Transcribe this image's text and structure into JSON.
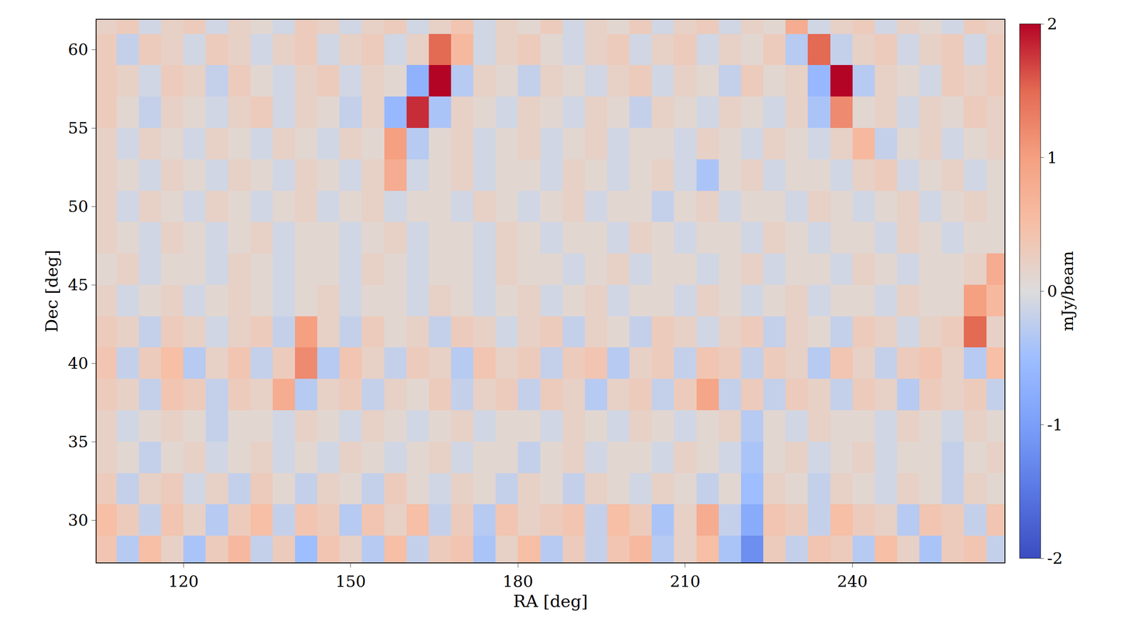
{
  "chart_data": {
    "type": "heatmap",
    "x_label": "RA [deg]",
    "y_label": "Dec [deg]",
    "x": [
      106,
      110,
      114,
      118,
      122,
      126,
      130,
      134,
      138,
      142,
      146,
      150,
      154,
      158,
      162,
      166,
      170,
      174,
      178,
      182,
      186,
      190,
      194,
      198,
      202,
      206,
      210,
      214,
      218,
      222,
      226,
      230,
      234,
      238,
      242,
      246,
      250,
      254,
      258,
      262,
      266
    ],
    "y": [
      28,
      30,
      32,
      34,
      36,
      38,
      40,
      42,
      44,
      46,
      48,
      50,
      52,
      54,
      56,
      58,
      60,
      62
    ],
    "cells": [
      [
        0.4,
        -0.3,
        0.5,
        0.2,
        -0.4,
        0.3,
        0.6,
        -0.2,
        0.3,
        -0.5,
        0.4,
        0.2,
        -0.3,
        0.5,
        -0.2,
        0.3,
        0.4,
        -0.4,
        0.2,
        0.5,
        -0.3,
        0.3,
        -0.2,
        0.4,
        0.6,
        -0.3,
        0.2,
        0.5,
        -0.4,
        -1.2,
        0.3,
        -0.2,
        0.4,
        0.3,
        -0.3,
        0.5,
        0.2,
        -0.4,
        0.3,
        0.4,
        -0.2
      ],
      [
        0.5,
        0.3,
        -0.2,
        0.4,
        0.2,
        -0.3,
        0.3,
        0.5,
        -0.2,
        0.4,
        0.3,
        -0.3,
        0.4,
        0.2,
        0.5,
        -0.2,
        0.3,
        -0.3,
        0.4,
        0.2,
        0.3,
        0.4,
        -0.2,
        0.5,
        0.3,
        -0.4,
        0.2,
        0.8,
        -0.2,
        -0.8,
        0.4,
        0.3,
        -0.2,
        0.5,
        0.3,
        0.2,
        -0.3,
        0.4,
        0.3,
        -0.2,
        0.4
      ],
      [
        0.3,
        -0.2,
        0.2,
        0.3,
        -0.1,
        0.2,
        -0.2,
        0.3,
        0.1,
        -0.2,
        0.2,
        0.1,
        -0.2,
        0.3,
        0.1,
        -0.1,
        0.2,
        0.1,
        -0.2,
        0.2,
        0.1,
        -0.2,
        0.2,
        0.1,
        -0.1,
        0.2,
        0.1,
        -0.2,
        0.1,
        -0.5,
        0.2,
        0.1,
        -0.2,
        0.2,
        0.1,
        -0.1,
        0.2,
        0.1,
        -0.2,
        0.2,
        0.1
      ],
      [
        0.2,
        0.1,
        -0.2,
        0.1,
        0.2,
        -0.1,
        0.1,
        0.2,
        -0.1,
        0.1,
        -0.1,
        0.2,
        0.1,
        -0.1,
        0.1,
        0.2,
        -0.1,
        0.1,
        0.1,
        -0.2,
        0.1,
        0.2,
        -0.1,
        0.1,
        0.1,
        -0.1,
        0.2,
        0.1,
        -0.1,
        -0.4,
        0.1,
        0.2,
        -0.1,
        0.1,
        0.2,
        -0.1,
        0.1,
        0.1,
        -0.2,
        0.1,
        0.2
      ],
      [
        0.2,
        -0.1,
        0.1,
        0.2,
        0.1,
        -0.2,
        0.1,
        0.1,
        -0.1,
        0.2,
        0.1,
        -0.1,
        0.2,
        0.1,
        -0.1,
        0.1,
        0.2,
        -0.1,
        0.1,
        0.1,
        -0.1,
        0.2,
        0.1,
        -0.1,
        0.2,
        0.1,
        -0.1,
        0.1,
        0.2,
        -0.3,
        0.1,
        -0.1,
        0.2,
        0.1,
        0.1,
        -0.1,
        0.2,
        0.1,
        -0.1,
        0.2,
        0.1
      ],
      [
        0.3,
        0.2,
        -0.2,
        0.4,
        0.3,
        -0.2,
        0.3,
        0.2,
        0.8,
        -0.3,
        0.2,
        0.3,
        -0.2,
        0.2,
        0.1,
        0.3,
        -0.2,
        0.2,
        0.3,
        -0.2,
        0.3,
        0.2,
        -0.3,
        0.2,
        0.3,
        -0.2,
        0.3,
        0.9,
        -0.2,
        0.3,
        -0.2,
        0.3,
        0.2,
        -0.2,
        0.3,
        0.2,
        -0.3,
        0.3,
        0.2,
        0.3,
        -0.2
      ],
      [
        0.4,
        -0.2,
        0.3,
        0.5,
        -0.3,
        0.2,
        0.4,
        -0.2,
        0.3,
        1.2,
        -0.3,
        0.4,
        0.2,
        -0.2,
        0.3,
        0.2,
        -0.3,
        0.4,
        0.2,
        0.3,
        -0.2,
        0.3,
        0.4,
        -0.3,
        0.2,
        0.3,
        -0.2,
        0.4,
        0.3,
        -0.2,
        0.3,
        0.2,
        -0.3,
        0.4,
        0.2,
        -0.2,
        0.3,
        0.4,
        0.2,
        -0.3,
        0.5
      ],
      [
        0.3,
        0.2,
        -0.2,
        0.3,
        0.2,
        -0.1,
        0.2,
        0.3,
        -0.2,
        1.0,
        0.2,
        -0.2,
        0.3,
        0.1,
        0.2,
        -0.2,
        0.3,
        0.2,
        -0.1,
        0.2,
        0.3,
        -0.2,
        0.2,
        0.1,
        -0.2,
        0.3,
        0.2,
        -0.1,
        0.2,
        0.3,
        -0.2,
        0.2,
        0.1,
        -0.2,
        0.3,
        0.2,
        -0.1,
        0.2,
        0.3,
        1.5,
        0.2
      ],
      [
        0.2,
        -0.1,
        0.1,
        0.2,
        -0.1,
        0.1,
        0.2,
        0.1,
        -0.1,
        0.1,
        0.2,
        -0.1,
        0.1,
        0.1,
        -0.1,
        0.2,
        0.1,
        -0.1,
        0.1,
        0.2,
        -0.1,
        0.1,
        0.2,
        -0.1,
        0.1,
        0.1,
        -0.1,
        0.2,
        0.1,
        -0.1,
        0.1,
        0.2,
        -0.1,
        0.1,
        0.1,
        -0.1,
        0.2,
        0.1,
        0.1,
        1.0,
        0.6
      ],
      [
        0.1,
        0.2,
        -0.1,
        0.1,
        0.1,
        -0.1,
        0.2,
        0.1,
        -0.1,
        0.1,
        0.1,
        -0.1,
        0.2,
        0.1,
        -0.1,
        0.1,
        0.1,
        -0.1,
        0.2,
        0.1,
        0.1,
        -0.1,
        0.1,
        0.2,
        -0.1,
        0.1,
        0.1,
        -0.1,
        0.1,
        0.2,
        -0.1,
        0.1,
        0.1,
        -0.1,
        0.2,
        0.1,
        -0.1,
        0.1,
        0.1,
        0.2,
        0.8
      ],
      [
        0.2,
        0.1,
        -0.1,
        0.2,
        0.1,
        -0.1,
        0.1,
        0.2,
        -0.1,
        0.1,
        0.1,
        -0.1,
        0.1,
        0.2,
        -0.1,
        0.1,
        0.1,
        -0.1,
        0.2,
        0.1,
        -0.1,
        0.1,
        0.1,
        -0.1,
        0.2,
        0.1,
        -0.1,
        0.1,
        0.1,
        -0.1,
        0.2,
        0.1,
        -0.1,
        0.1,
        0.1,
        -0.1,
        0.2,
        0.1,
        -0.1,
        0.1,
        0.1
      ],
      [
        0.2,
        -0.1,
        0.2,
        0.1,
        -0.1,
        0.2,
        0.1,
        -0.1,
        0.1,
        0.2,
        -0.1,
        0.1,
        0.2,
        -0.1,
        0.1,
        0.1,
        -0.1,
        0.2,
        0.1,
        -0.1,
        0.1,
        0.2,
        -0.1,
        0.1,
        0.1,
        -0.2,
        0.1,
        0.2,
        -0.1,
        0.1,
        0.1,
        -0.1,
        0.2,
        0.1,
        -0.1,
        0.1,
        0.2,
        -0.1,
        0.1,
        0.2,
        0.1
      ],
      [
        0.2,
        0.1,
        -0.1,
        0.2,
        0.1,
        -0.1,
        0.2,
        0.1,
        -0.1,
        0.2,
        0.1,
        -0.1,
        0.2,
        0.8,
        -0.1,
        0.1,
        0.2,
        -0.1,
        0.1,
        0.1,
        -0.1,
        0.2,
        0.1,
        -0.1,
        0.1,
        0.2,
        -0.1,
        -0.4,
        0.1,
        0.2,
        -0.1,
        0.1,
        0.1,
        -0.1,
        0.2,
        0.3,
        -0.1,
        0.1,
        0.2,
        -0.1,
        0.1
      ],
      [
        0.2,
        -0.1,
        0.2,
        0.1,
        -0.1,
        0.2,
        0.1,
        -0.1,
        0.2,
        0.1,
        -0.1,
        0.2,
        0.1,
        1.0,
        -0.3,
        0.1,
        0.2,
        -0.1,
        0.1,
        0.2,
        -0.1,
        0.1,
        0.2,
        -0.1,
        0.1,
        0.1,
        -0.1,
        0.2,
        0.1,
        -0.1,
        0.2,
        0.1,
        -0.1,
        0.2,
        0.6,
        -0.2,
        0.1,
        0.2,
        -0.1,
        0.1,
        0.2
      ],
      [
        0.3,
        0.1,
        -0.2,
        0.2,
        0.1,
        -0.1,
        0.2,
        0.3,
        -0.1,
        0.2,
        0.1,
        -0.2,
        0.2,
        -0.6,
        1.8,
        -0.4,
        0.2,
        0.1,
        -0.1,
        0.2,
        0.1,
        -0.1,
        0.2,
        0.1,
        -0.2,
        0.2,
        0.1,
        -0.1,
        0.2,
        0.1,
        -0.1,
        0.2,
        -0.4,
        1.2,
        0.1,
        0.2,
        -0.1,
        0.2,
        0.1,
        0.3,
        0.2
      ],
      [
        0.3,
        0.2,
        -0.1,
        0.3,
        0.2,
        -0.2,
        0.3,
        0.1,
        -0.1,
        0.2,
        0.3,
        -0.1,
        0.2,
        0.1,
        -0.7,
        2.0,
        -0.3,
        0.2,
        0.1,
        -0.2,
        0.2,
        0.1,
        -0.1,
        0.2,
        0.3,
        -0.1,
        0.2,
        0.1,
        -0.2,
        0.3,
        0.1,
        0.2,
        -0.6,
        2.0,
        -0.3,
        0.2,
        0.1,
        -0.1,
        0.3,
        0.2,
        0.3
      ],
      [
        0.3,
        -0.2,
        0.3,
        0.2,
        -0.1,
        0.3,
        0.2,
        -0.1,
        0.2,
        0.3,
        -0.1,
        0.2,
        0.3,
        -0.1,
        0.2,
        1.5,
        0.6,
        -0.1,
        0.2,
        0.3,
        0.1,
        -0.1,
        0.2,
        0.3,
        -0.1,
        0.2,
        0.3,
        -0.1,
        0.2,
        0.1,
        0.3,
        -0.3,
        1.5,
        -0.2,
        0.2,
        0.3,
        -0.1,
        0.2,
        0.3,
        -0.1,
        0.3
      ],
      [
        0.2,
        0.3,
        -0.1,
        0.2,
        0.3,
        -0.1,
        0.2,
        0.1,
        -0.1,
        0.3,
        0.2,
        -0.1,
        0.2,
        0.3,
        -0.1,
        0.2,
        0.4,
        -0.1,
        0.2,
        0.1,
        0.3,
        -0.1,
        0.2,
        0.1,
        0.3,
        -0.1,
        0.2,
        0.3,
        -0.1,
        0.2,
        0.1,
        0.8,
        -0.1,
        0.2,
        0.3,
        -0.1,
        0.2,
        0.1,
        -0.1,
        0.3,
        0.2
      ]
    ],
    "xlim": [
      104.4,
      267.3
    ],
    "ylim": [
      27.3,
      61.9
    ],
    "xticks": [
      120,
      150,
      180,
      210,
      240
    ],
    "yticks": [
      30,
      35,
      40,
      45,
      50,
      55,
      60
    ],
    "colorbar": {
      "label": "mJy/beam",
      "range": [
        -2,
        2
      ],
      "ticks": [
        -2,
        -1,
        0,
        1,
        2
      ]
    }
  }
}
